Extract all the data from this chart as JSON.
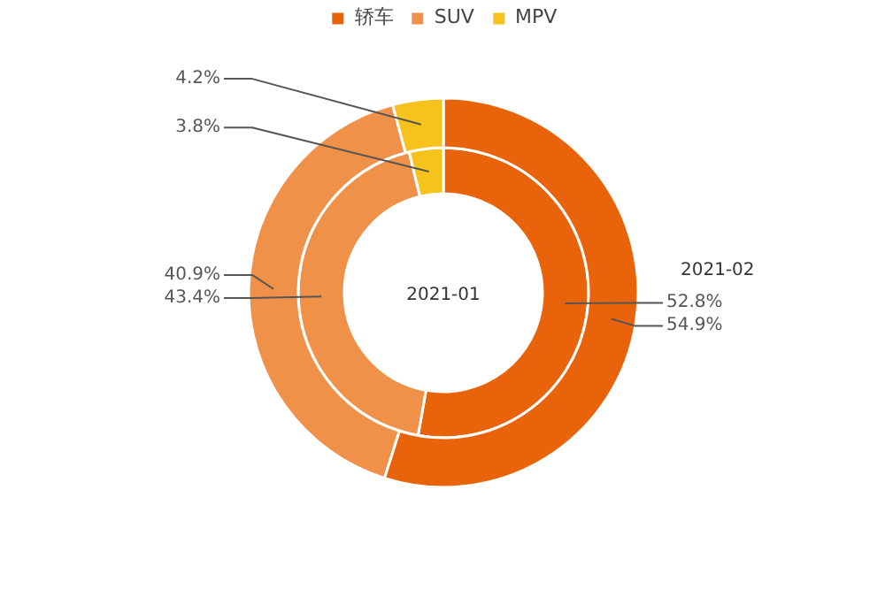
{
  "chart_data": {
    "type": "donut",
    "categories": [
      "轿车",
      "SUV",
      "MPV"
    ],
    "colors": [
      "#e8630a",
      "#f0914a",
      "#f7c21b"
    ],
    "legend": "top",
    "series": [
      {
        "name": "2021-01",
        "values": [
          52.8,
          43.4,
          3.8
        ],
        "value_labels": [
          "52.8%",
          "43.4%",
          "3.8%"
        ]
      },
      {
        "name": "2021-02",
        "values": [
          54.9,
          40.9,
          4.2
        ],
        "value_labels": [
          "54.9%",
          "40.9%",
          "4.2%"
        ]
      }
    ]
  }
}
